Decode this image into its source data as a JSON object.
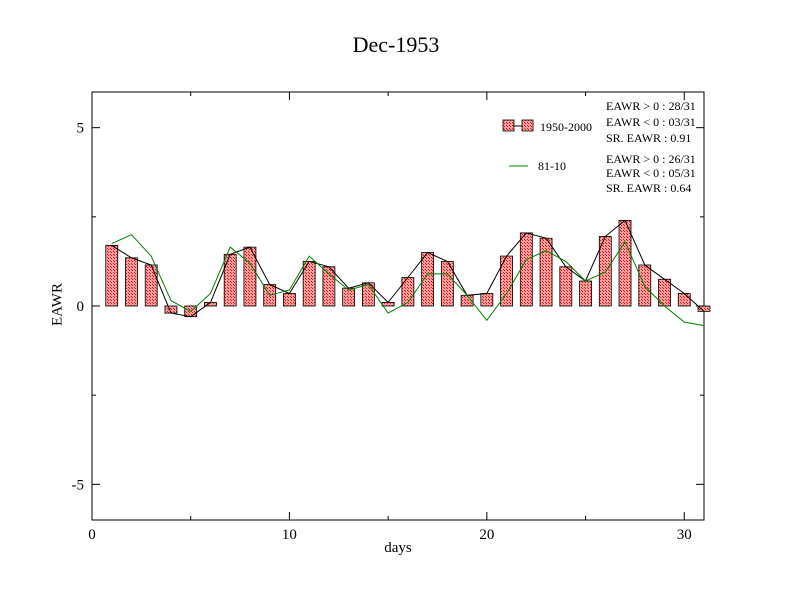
{
  "chart_data": {
    "type": "bar",
    "title": "Dec-1953",
    "xlabel": "days",
    "ylabel": "EAWR",
    "xlim": [
      0,
      31
    ],
    "ylim": [
      -6,
      6
    ],
    "x_ticks": [
      0,
      10,
      20,
      30
    ],
    "y_ticks": [
      -5,
      0,
      5
    ],
    "grid": false,
    "legend_position": "top-right",
    "x": [
      1,
      2,
      3,
      4,
      5,
      6,
      7,
      8,
      9,
      10,
      11,
      12,
      13,
      14,
      15,
      16,
      17,
      18,
      19,
      20,
      21,
      22,
      23,
      24,
      25,
      26,
      27,
      28,
      29,
      30,
      31
    ],
    "series": [
      {
        "name": "1950-2000",
        "kind": "bar+line",
        "color": "#e03030",
        "line_color": "#000000",
        "values": [
          1.7,
          1.35,
          1.15,
          -0.2,
          -0.3,
          0.1,
          1.45,
          1.65,
          0.6,
          0.35,
          1.25,
          1.1,
          0.5,
          0.65,
          0.1,
          0.8,
          1.5,
          1.25,
          0.3,
          0.35,
          1.4,
          2.05,
          1.9,
          1.1,
          0.7,
          1.95,
          2.4,
          1.15,
          0.75,
          0.35,
          -0.15
        ]
      },
      {
        "name": "81-10",
        "kind": "line",
        "color": "#008000",
        "values": [
          1.75,
          2.0,
          1.4,
          0.15,
          -0.15,
          0.35,
          1.65,
          1.2,
          0.3,
          0.45,
          1.4,
          0.9,
          0.45,
          0.6,
          -0.2,
          0.1,
          0.9,
          0.9,
          0.3,
          -0.4,
          0.35,
          1.3,
          1.55,
          1.25,
          0.7,
          0.95,
          1.8,
          0.55,
          0.0,
          -0.45,
          -0.55
        ]
      }
    ],
    "annotations": {
      "group1": [
        "EAWR > 0 : 28/31",
        "EAWR < 0 : 03/31",
        "SR. EAWR :  0.91"
      ],
      "group2": [
        "EAWR > 0 : 26/31",
        "EAWR < 0 : 05/31",
        "SR. EAWR :  0.64"
      ]
    }
  }
}
